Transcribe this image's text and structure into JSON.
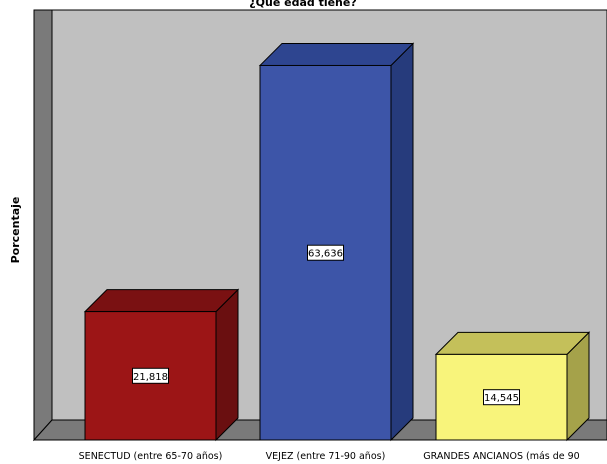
{
  "chart_data": {
    "type": "bar",
    "title": "¿Qué edad tiene?",
    "ylabel": "Porcentaje",
    "xlabel": "",
    "ylim": [
      0,
      70
    ],
    "grid": false,
    "categories": [
      "SENECTUD (entre 65-70 años)",
      "VEJEZ (entre 71-90 años)",
      "GRANDES ANCIANOS (más de 90"
    ],
    "values": [
      21.818,
      63.636,
      14.545
    ],
    "data_labels": [
      "21,818",
      "63,636",
      "14,545"
    ],
    "colors": [
      "#9c1516",
      "#3d55a8",
      "#f8f47b"
    ],
    "side_colors": [
      "#6a0f10",
      "#263b7c",
      "#a5a24a"
    ],
    "top_colors": [
      "#7a1112",
      "#2e4590",
      "#c4c05a"
    ],
    "wall_color": "#c0c0c0",
    "floor_color": "#7a7a7a"
  }
}
